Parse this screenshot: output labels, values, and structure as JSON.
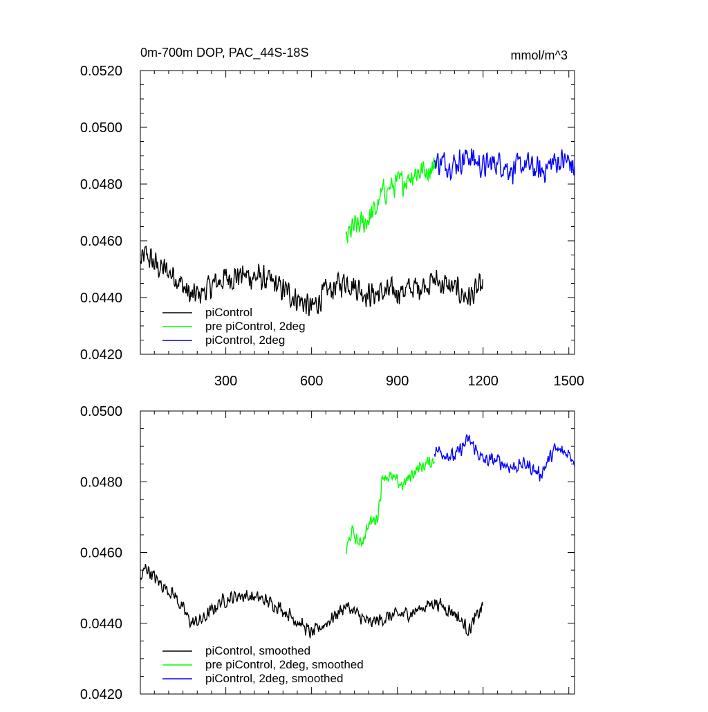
{
  "chart_data": [
    {
      "type": "line",
      "title": "0m-700m DOP, PAC_44S-18S",
      "units": "mmol/m^3",
      "xlabel": "",
      "ylabel": "",
      "xlim": [
        1,
        1520
      ],
      "ylim": [
        0.042,
        0.052
      ],
      "xticks": [
        300,
        600,
        900,
        1200,
        1500
      ],
      "xtick_labels": [
        "300",
        "600",
        "900",
        "1200",
        "1500"
      ],
      "yticks": [
        0.042,
        0.044,
        0.046,
        0.048,
        0.05,
        0.052
      ],
      "ytick_labels": [
        "0.0420",
        "0.0440",
        "0.0460",
        "0.0480",
        "0.0500",
        "0.0520"
      ],
      "legend_position": "bottom-left",
      "series": [
        {
          "name": "piControl",
          "color": "#000000",
          "line_style": "solid",
          "noise": 0.0007,
          "x": [
            1,
            20,
            60,
            120,
            180,
            220,
            280,
            350,
            420,
            480,
            560,
            600,
            650,
            720,
            800,
            880,
            950,
            1030,
            1100,
            1150,
            1200
          ],
          "y": [
            0.0452,
            0.0455,
            0.0451,
            0.0448,
            0.044,
            0.0442,
            0.0446,
            0.0448,
            0.0447,
            0.0444,
            0.0439,
            0.0436,
            0.0442,
            0.0446,
            0.0441,
            0.0442,
            0.0443,
            0.0446,
            0.0443,
            0.044,
            0.0444
          ]
        },
        {
          "name": "pre piControl, 2deg",
          "color": "#00ff00",
          "line_style": "solid",
          "noise": 0.0007,
          "x": [
            720,
            740,
            780,
            820,
            850,
            880,
            920,
            960,
            1000,
            1030
          ],
          "y": [
            0.046,
            0.0464,
            0.0466,
            0.047,
            0.0477,
            0.0479,
            0.0481,
            0.0484,
            0.0485,
            0.0486
          ]
        },
        {
          "name": "piControl, 2deg",
          "color": "#0000ff",
          "line_style": "solid",
          "noise": 0.0007,
          "x": [
            1030,
            1100,
            1150,
            1200,
            1250,
            1300,
            1350,
            1400,
            1450,
            1500,
            1520
          ],
          "y": [
            0.0488,
            0.0487,
            0.049,
            0.0486,
            0.0488,
            0.0485,
            0.0487,
            0.0484,
            0.0488,
            0.0488,
            0.0485
          ]
        }
      ]
    },
    {
      "type": "line",
      "title": "",
      "xlabel": "",
      "ylabel": "",
      "xlim": [
        1,
        1520
      ],
      "ylim": [
        0.042,
        0.05
      ],
      "xticks": [
        300,
        600,
        900,
        1200,
        1500
      ],
      "xtick_labels": [],
      "yticks": [
        0.042,
        0.044,
        0.046,
        0.048,
        0.05
      ],
      "ytick_labels": [
        "0.0420",
        "0.0440",
        "0.0460",
        "0.0480",
        "0.0500"
      ],
      "legend_position": "bottom-left",
      "series": [
        {
          "name": "piControl, smoothed",
          "color": "#000000",
          "line_style": "solid",
          "noise": 0.0003,
          "x": [
            1,
            20,
            60,
            120,
            180,
            220,
            280,
            350,
            420,
            480,
            560,
            600,
            650,
            720,
            800,
            880,
            950,
            1030,
            1100,
            1150,
            1200
          ],
          "y": [
            0.0452,
            0.0456,
            0.0452,
            0.0448,
            0.044,
            0.0441,
            0.0446,
            0.0448,
            0.0447,
            0.0445,
            0.044,
            0.0437,
            0.044,
            0.0445,
            0.044,
            0.0442,
            0.0443,
            0.0446,
            0.0443,
            0.0438,
            0.0445
          ]
        },
        {
          "name": "pre piControl, 2deg, smoothed",
          "color": "#00ff00",
          "line_style": "solid",
          "noise": 0.0003,
          "x": [
            720,
            740,
            770,
            800,
            830,
            850,
            880,
            920,
            960,
            1000,
            1030
          ],
          "y": [
            0.046,
            0.0466,
            0.0462,
            0.0468,
            0.047,
            0.0482,
            0.0481,
            0.0479,
            0.0483,
            0.0485,
            0.0486
          ]
        },
        {
          "name": "piControl, 2deg, smoothed",
          "color": "#0000ff",
          "line_style": "solid",
          "noise": 0.0003,
          "x": [
            1030,
            1100,
            1150,
            1200,
            1250,
            1300,
            1350,
            1400,
            1450,
            1500,
            1520
          ],
          "y": [
            0.0489,
            0.0487,
            0.0492,
            0.0486,
            0.0486,
            0.0484,
            0.0485,
            0.0482,
            0.0489,
            0.0488,
            0.0486
          ]
        }
      ]
    }
  ]
}
